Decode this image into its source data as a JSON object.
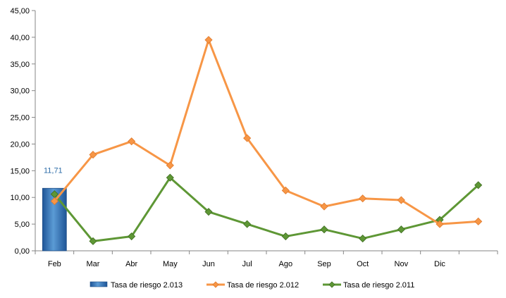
{
  "chart_data": {
    "type": "bar+line",
    "categories": [
      "Feb",
      "Mar",
      "Abr",
      "May",
      "Jun",
      "Jul",
      "Ago",
      "Sep",
      "Oct",
      "Nov",
      "Dic",
      ""
    ],
    "ylim": [
      0,
      45
    ],
    "yticks": [
      0,
      5,
      10,
      15,
      20,
      25,
      30,
      35,
      40,
      45
    ],
    "ytick_labels": [
      "0,00",
      "5,00",
      "10,00",
      "15,00",
      "20,00",
      "25,00",
      "30,00",
      "35,00",
      "40,00",
      "45,00"
    ],
    "grid": false,
    "legend_position": "bottom",
    "series": [
      {
        "name": "Tasa de riesgo 2.013",
        "kind": "bar",
        "color": "#2E6DB4",
        "values": [
          11.71,
          null,
          null,
          null,
          null,
          null,
          null,
          null,
          null,
          null,
          null,
          null
        ],
        "data_labels": [
          "11,71"
        ]
      },
      {
        "name": "Tasa de riesgo 2.012",
        "kind": "line",
        "color": "#F79646",
        "values": [
          9.3,
          18.0,
          20.5,
          16.0,
          39.5,
          21.1,
          11.3,
          8.3,
          9.8,
          9.5,
          5.0,
          5.5
        ]
      },
      {
        "name": "Tasa de riesgo 2.011",
        "kind": "line",
        "color": "#5E9735",
        "values": [
          10.6,
          1.8,
          2.7,
          13.7,
          7.3,
          5.0,
          2.7,
          4.0,
          2.3,
          4.0,
          5.8,
          12.3
        ]
      }
    ]
  }
}
